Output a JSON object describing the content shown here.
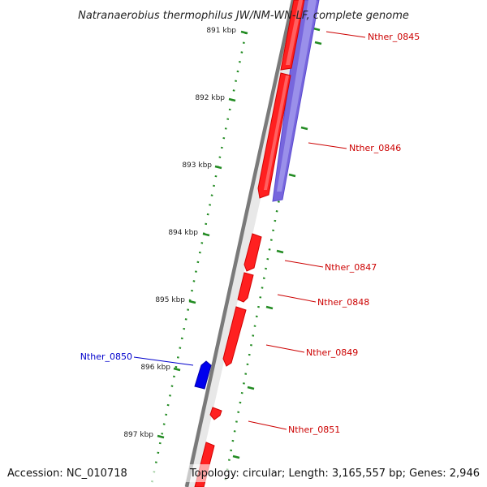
{
  "title": "Natranaerobius thermophilus JW/NM-WN-LF, complete genome",
  "footer": {
    "accession": "Accession: NC_010718",
    "summary": "Topology: circular; Length: 3,165,557 bp; Genes: 2,946"
  },
  "colors": {
    "backbone": "#8a8a8a",
    "scale_ticks": "#228b22",
    "forward_gene": "#ff1a1a",
    "reverse_gene_light": "#7766dd",
    "reverse_gene_dark": "#0000ee",
    "label_red": "#cc0000",
    "label_blue": "#0000cc"
  },
  "scale": {
    "labels": [
      "891 kbp",
      "892 kbp",
      "893 kbp",
      "894 kbp",
      "895 kbp",
      "896 kbp",
      "897 kbp"
    ]
  },
  "genes": [
    {
      "name": "Nther_0845",
      "color": "red"
    },
    {
      "name": "Nther_0846",
      "color": "red"
    },
    {
      "name": "Nther_0847",
      "color": "red"
    },
    {
      "name": "Nther_0848",
      "color": "red"
    },
    {
      "name": "Nther_0849",
      "color": "red"
    },
    {
      "name": "Nther_0850",
      "color": "blue"
    },
    {
      "name": "Nther_0851",
      "color": "red"
    }
  ]
}
